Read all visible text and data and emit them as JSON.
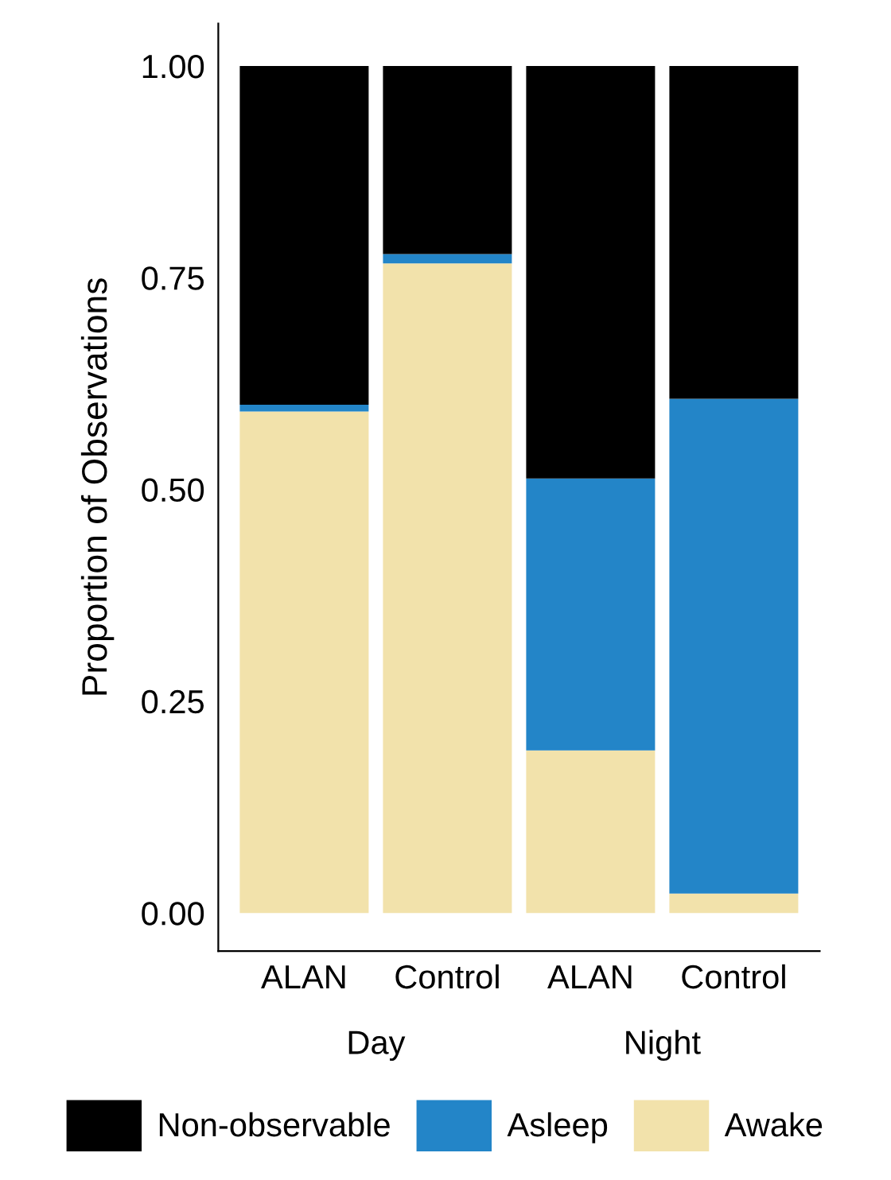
{
  "chart_data": {
    "type": "bar",
    "stacked": true,
    "ylabel": "Proportion of Observations",
    "categories": [
      "ALAN",
      "Control",
      "ALAN",
      "Control"
    ],
    "series": [
      {
        "name": "Awake",
        "color": "#f2e2ab",
        "values": [
          0.592,
          0.767,
          0.192,
          0.023
        ]
      },
      {
        "name": "Asleep",
        "color": "#2385c8",
        "values": [
          0.008,
          0.011,
          0.321,
          0.584
        ]
      },
      {
        "name": "Non-observable",
        "color": "#000000",
        "values": [
          0.4,
          0.222,
          0.487,
          0.393
        ]
      }
    ],
    "ylim": [
      -0.045,
      1.05
    ],
    "yticks": [
      {
        "value": 0,
        "label": "0.00"
      },
      {
        "value": 0.25,
        "label": "0.25"
      },
      {
        "value": 0.5,
        "label": "0.50"
      },
      {
        "value": 0.75,
        "label": "0.75"
      },
      {
        "value": 1,
        "label": "1.00"
      }
    ],
    "annotations": [
      "Day",
      "Night"
    ],
    "grid": false,
    "legend": "bottom"
  }
}
